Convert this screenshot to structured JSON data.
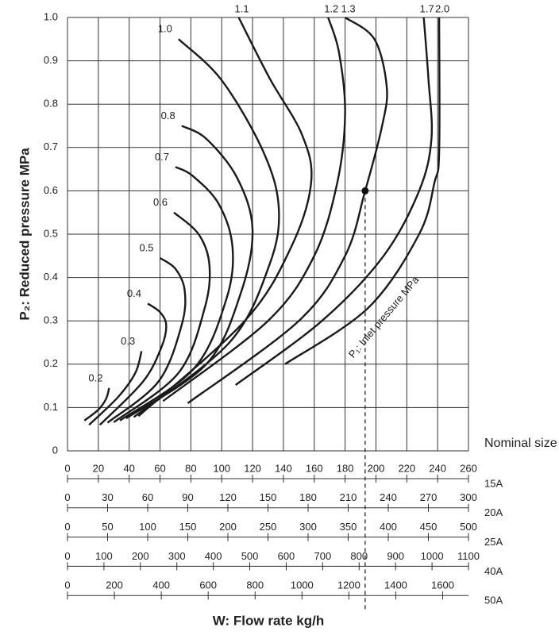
{
  "chart_data": {
    "type": "line",
    "y_label": "P₂: Reduced pressure MPa",
    "x_label": "W: Flow rate kg/h",
    "annotation": "P₁: Inlet pressure MPa",
    "scale_header": "Nominal size",
    "color": "#1a1a1a",
    "grid": true,
    "ylim": [
      0,
      1
    ],
    "yticks": [
      0,
      0.1,
      0.2,
      0.3,
      0.4,
      0.5,
      0.6,
      0.7,
      0.8,
      0.9,
      {
        "value": 1,
        "label": "1.0"
      }
    ],
    "xlim": [
      0,
      260
    ],
    "series": [
      {
        "name": "0.2",
        "x": [
          11,
          20,
          25,
          27
        ],
        "values": [
          0.07,
          0.095,
          0.12,
          0.145
        ]
      },
      {
        "name": "0.3",
        "x": [
          14,
          33,
          44,
          48
        ],
        "values": [
          0.06,
          0.125,
          0.18,
          0.23
        ]
      },
      {
        "name": "0.4",
        "x": [
          21,
          49,
          61,
          64,
          60,
          52
        ],
        "values": [
          0.06,
          0.16,
          0.24,
          0.29,
          0.32,
          0.34
        ]
      },
      {
        "name": "0.5",
        "x": [
          26,
          59,
          74,
          76,
          70,
          60
        ],
        "values": [
          0.065,
          0.16,
          0.29,
          0.37,
          0.42,
          0.445
        ]
      },
      {
        "name": "0.6",
        "x": [
          30,
          72,
          89,
          92,
          85,
          69
        ],
        "values": [
          0.066,
          0.18,
          0.33,
          0.43,
          0.5,
          0.55
        ]
      },
      {
        "name": "0.7",
        "x": [
          34,
          82,
          103,
          107,
          98,
          81,
          70
        ],
        "values": [
          0.07,
          0.19,
          0.35,
          0.47,
          0.57,
          0.635,
          0.655
        ]
      },
      {
        "name": "0.8",
        "x": [
          38,
          90,
          112,
          120,
          110,
          90,
          74
        ],
        "values": [
          0.075,
          0.2,
          0.36,
          0.51,
          0.63,
          0.72,
          0.75
        ]
      },
      {
        "name": "1.0",
        "x": [
          43,
          105,
          131,
          137,
          127,
          100,
          72
        ],
        "values": [
          0.078,
          0.25,
          0.43,
          0.56,
          0.69,
          0.855,
          0.95
        ]
      },
      {
        "name": "1.1",
        "x": [
          46,
          115,
          145,
          158,
          152,
          131,
          111
        ],
        "values": [
          0.08,
          0.3,
          0.47,
          0.62,
          0.73,
          0.86,
          1.0
        ]
      },
      {
        "name": "1.2",
        "x": [
          62,
          130,
          160,
          175,
          180,
          176,
          169
        ],
        "values": [
          0.115,
          0.3,
          0.45,
          0.62,
          0.78,
          0.92,
          1.0
        ]
      },
      {
        "name": "1.3",
        "x": [
          78,
          150,
          180,
          193,
          204,
          207,
          199,
          180
        ],
        "values": [
          0.11,
          0.3,
          0.45,
          0.6,
          0.75,
          0.84,
          0.95,
          1.0
        ]
      },
      {
        "name": "1.7",
        "x": [
          109,
          165,
          205,
          228,
          236,
          234,
          231
        ],
        "values": [
          0.152,
          0.3,
          0.45,
          0.6,
          0.72,
          0.86,
          1.0
        ]
      },
      {
        "name": "2.0",
        "x": [
          141,
          195,
          228,
          238,
          241,
          241
        ],
        "values": [
          0.2,
          0.33,
          0.5,
          0.62,
          0.69,
          1.0
        ]
      }
    ],
    "operating_point": {
      "x": 193,
      "y": 0.6
    },
    "x_scales": [
      {
        "name": "15A",
        "xlim": [
          0,
          260
        ],
        "xticks": [
          0,
          20,
          40,
          60,
          80,
          100,
          120,
          140,
          160,
          180,
          200,
          220,
          240,
          260
        ]
      },
      {
        "name": "20A",
        "xlim": [
          0,
          300
        ],
        "xticks": [
          0,
          30,
          60,
          90,
          120,
          150,
          180,
          210,
          240,
          270,
          300
        ]
      },
      {
        "name": "25A",
        "xlim": [
          0,
          500
        ],
        "xticks": [
          0,
          50,
          100,
          150,
          200,
          250,
          300,
          350,
          400,
          450,
          500
        ]
      },
      {
        "name": "40A",
        "xlim": [
          0,
          1100
        ],
        "xticks": [
          0,
          100,
          200,
          300,
          400,
          500,
          600,
          700,
          800,
          900,
          1000,
          1100
        ]
      },
      {
        "name": "50A",
        "xlim": [
          0,
          1710
        ],
        "xticks": [
          0,
          200,
          400,
          600,
          800,
          1000,
          1200,
          1400,
          1600
        ]
      }
    ]
  }
}
